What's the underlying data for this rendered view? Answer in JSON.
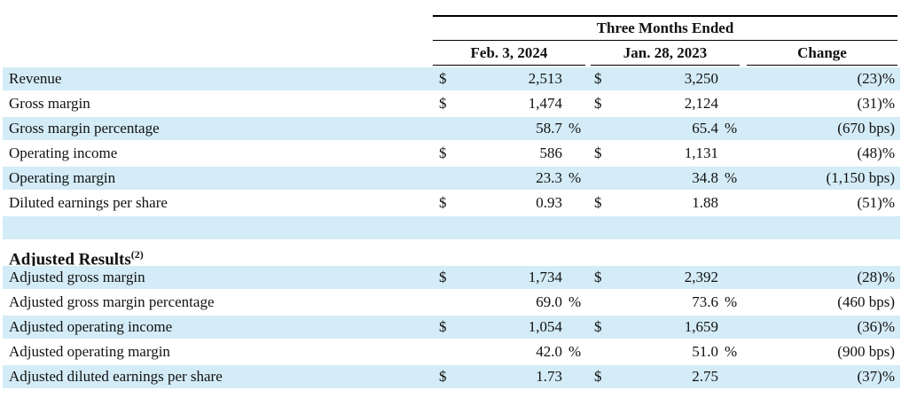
{
  "header": {
    "title": "Three Months Ended",
    "columns": [
      "Feb. 3, 2024",
      "Jan. 28, 2023",
      "Change"
    ]
  },
  "sections": [
    {
      "rows": [
        {
          "label": "Revenue",
          "current": {
            "currency": "$",
            "value": "2,513"
          },
          "prior": {
            "currency": "$",
            "value": "3,250"
          },
          "change": "(23)%"
        },
        {
          "label": "Gross margin",
          "current": {
            "currency": "$",
            "value": "1,474"
          },
          "prior": {
            "currency": "$",
            "value": "2,124"
          },
          "change": "(31)%"
        },
        {
          "label": "Gross margin percentage",
          "current": {
            "value": "58.7",
            "unit": "%"
          },
          "prior": {
            "value": "65.4",
            "unit": "%"
          },
          "change": "(670 bps)"
        },
        {
          "label": "Operating income",
          "current": {
            "currency": "$",
            "value": "586"
          },
          "prior": {
            "currency": "$",
            "value": "1,131"
          },
          "change": "(48)%"
        },
        {
          "label": "Operating margin",
          "current": {
            "value": "23.3",
            "unit": "%"
          },
          "prior": {
            "value": "34.8",
            "unit": "%"
          },
          "change": "(1,150 bps)"
        },
        {
          "label": "Diluted earnings per share",
          "current": {
            "currency": "$",
            "value": "0.93"
          },
          "prior": {
            "currency": "$",
            "value": "1.88"
          },
          "change": "(51)%"
        }
      ]
    },
    {
      "title": "Adjusted Results",
      "title_note": "(2)",
      "rows": [
        {
          "label": "Adjusted gross margin",
          "current": {
            "currency": "$",
            "value": "1,734"
          },
          "prior": {
            "currency": "$",
            "value": "2,392"
          },
          "change": "(28)%"
        },
        {
          "label": "Adjusted gross margin percentage",
          "current": {
            "value": "69.0",
            "unit": "%"
          },
          "prior": {
            "value": "73.6",
            "unit": "%"
          },
          "change": "(460 bps)"
        },
        {
          "label": "Adjusted operating income",
          "current": {
            "currency": "$",
            "value": "1,054"
          },
          "prior": {
            "currency": "$",
            "value": "1,659"
          },
          "change": "(36)%"
        },
        {
          "label": "Adjusted operating margin",
          "current": {
            "value": "42.0",
            "unit": "%"
          },
          "prior": {
            "value": "51.0",
            "unit": "%"
          },
          "change": "(900 bps)"
        },
        {
          "label": "Adjusted diluted earnings per share",
          "current": {
            "currency": "$",
            "value": "1.73"
          },
          "prior": {
            "currency": "$",
            "value": "2.75"
          },
          "change": "(37)%"
        }
      ]
    }
  ]
}
